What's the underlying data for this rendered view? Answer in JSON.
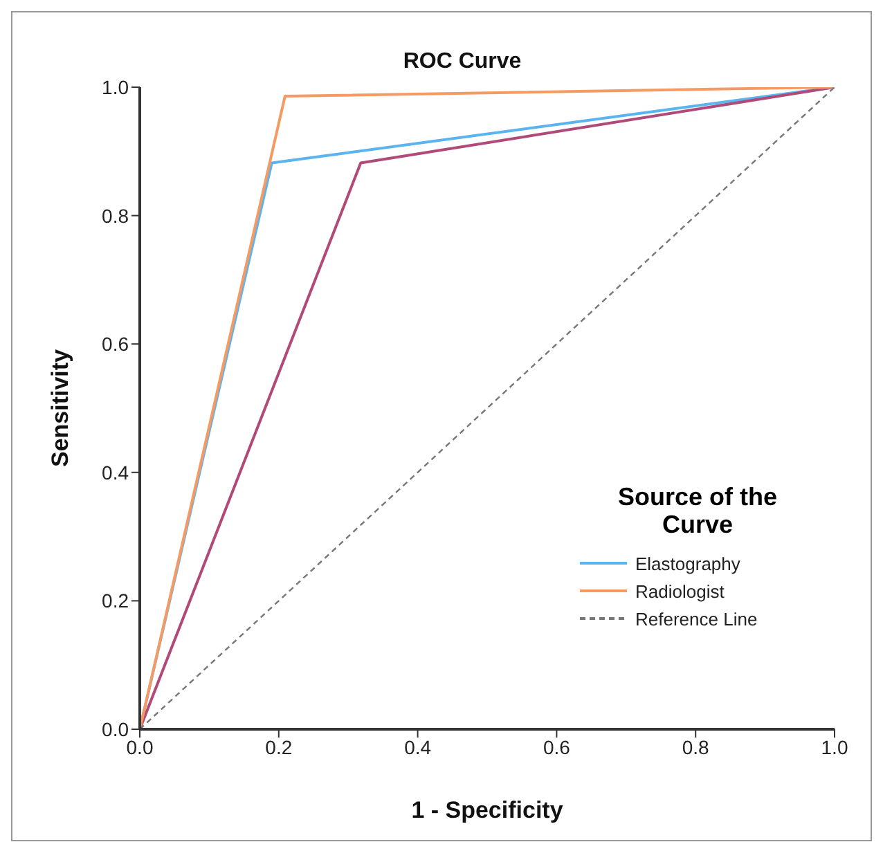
{
  "chart_data": {
    "type": "line",
    "title": "ROC Curve",
    "xlabel": "1 - Specificity",
    "ylabel": "Sensitivity",
    "legend_title": "Source of the Curve",
    "xlim": [
      0,
      1
    ],
    "ylim": [
      0,
      1
    ],
    "xticks": [
      {
        "value": 0,
        "label": "0.0"
      },
      {
        "value": 0.2,
        "label": "0.2"
      },
      {
        "value": 0.4,
        "label": "0.4"
      },
      {
        "value": 0.6,
        "label": "0.6"
      },
      {
        "value": 0.8,
        "label": "0.8"
      },
      {
        "value": 1,
        "label": "1.0"
      }
    ],
    "yticks": [
      {
        "value": 0,
        "label": "0.0"
      },
      {
        "value": 0.2,
        "label": "0.2"
      },
      {
        "value": 0.4,
        "label": "0.4"
      },
      {
        "value": 0.6,
        "label": "0.6"
      },
      {
        "value": 0.8,
        "label": "0.8"
      },
      {
        "value": 1,
        "label": "1.0"
      }
    ],
    "grid": false,
    "legend": "bottom right",
    "marker": "none",
    "series": [
      {
        "name": "Elastography",
        "color": "#5ab4f0",
        "x": [
          0,
          0.19,
          1
        ],
        "values": [
          0,
          0.882,
          1
        ]
      },
      {
        "color": "#b04a78",
        "x": [
          0,
          0.318,
          1
        ],
        "values": [
          0,
          0.882,
          1
        ]
      },
      {
        "name": "Radiologist",
        "color": "#f59a63",
        "x": [
          0,
          0.209,
          1
        ],
        "values": [
          0,
          0.986,
          1
        ]
      },
      {
        "name": "Reference Line",
        "color": "#777777",
        "line_style": "dashed",
        "x": [
          0,
          1
        ],
        "values": [
          0,
          1
        ]
      }
    ]
  }
}
